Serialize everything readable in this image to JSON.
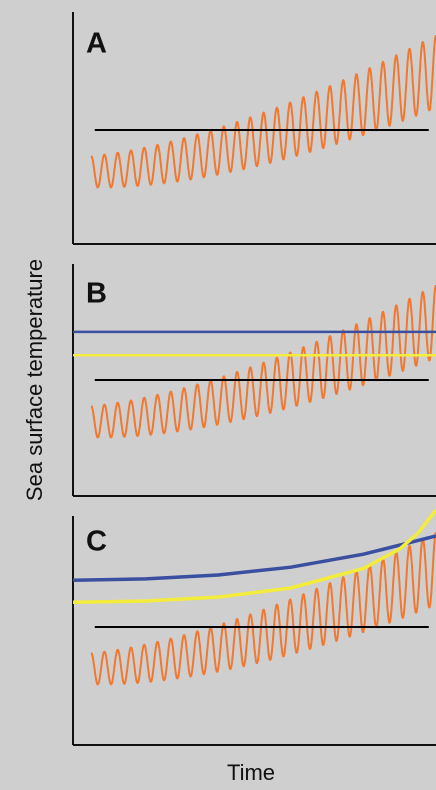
{
  "figure": {
    "ylabel": "Sea surface temperature",
    "xlabel": "Time",
    "background": "#cfcfcf",
    "colors": {
      "sst": "#f07830",
      "baseline": "#000000",
      "threshold_blue": "#3a4fa0",
      "threshold_yellow": "#f3ec3c",
      "axis": "#111111"
    }
  },
  "chart_data": [
    {
      "type": "line",
      "panel": "A",
      "xlim": [
        0,
        1
      ],
      "ylim": [
        -1.2,
        1.2
      ],
      "grid": false,
      "series": [
        {
          "role": "sst",
          "baseline_start": -0.32,
          "baseline_end": 0.45,
          "amplitude_start": 0.12,
          "amplitude_end": 0.28,
          "cycles": 26
        },
        {
          "role": "baseline",
          "value": 0
        }
      ]
    },
    {
      "type": "line",
      "panel": "B",
      "xlim": [
        0,
        1
      ],
      "ylim": [
        -1.2,
        1.2
      ],
      "grid": false,
      "series": [
        {
          "role": "sst",
          "baseline_start": -0.32,
          "baseline_end": 0.45,
          "amplitude_start": 0.12,
          "amplitude_end": 0.28,
          "cycles": 26
        },
        {
          "role": "baseline",
          "value": 0
        },
        {
          "role": "threshold_blue",
          "x": [
            0,
            1
          ],
          "y": [
            0.37,
            0.37
          ]
        },
        {
          "role": "threshold_yellow",
          "x": [
            0,
            1
          ],
          "y": [
            0.19,
            0.19
          ]
        }
      ]
    },
    {
      "type": "line",
      "panel": "C",
      "xlim": [
        0,
        1
      ],
      "ylim": [
        -1.2,
        1.2
      ],
      "grid": false,
      "series": [
        {
          "role": "sst",
          "baseline_start": -0.32,
          "baseline_end": 0.45,
          "amplitude_start": 0.12,
          "amplitude_end": 0.28,
          "cycles": 26
        },
        {
          "role": "baseline",
          "value": 0
        },
        {
          "role": "threshold_blue",
          "x": [
            0,
            0.2,
            0.4,
            0.6,
            0.8,
            1.0
          ],
          "y": [
            0.36,
            0.37,
            0.4,
            0.46,
            0.56,
            0.7
          ]
        },
        {
          "role": "threshold_yellow",
          "x": [
            0,
            0.2,
            0.4,
            0.6,
            0.8,
            0.9,
            0.95,
            1.0
          ],
          "y": [
            0.19,
            0.2,
            0.23,
            0.3,
            0.45,
            0.6,
            0.72,
            0.9
          ]
        }
      ]
    }
  ]
}
